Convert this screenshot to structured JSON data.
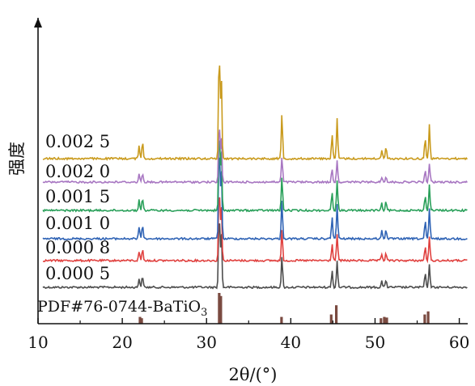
{
  "chart_data": {
    "type": "line",
    "title": "",
    "xlabel": "2θ/(°)",
    "ylabel": "强度",
    "xlim": [
      10,
      61
    ],
    "xticks": [
      10,
      20,
      30,
      40,
      50,
      60
    ],
    "grid": false,
    "legend": "none",
    "reference": {
      "label": "PDF#76-0744-BaTiO",
      "label_subscript": "3",
      "color": "#7a4a40",
      "peaks": [
        {
          "x": 22.1,
          "h": 0.22
        },
        {
          "x": 22.3,
          "h": 0.18
        },
        {
          "x": 31.5,
          "h": 1.0
        },
        {
          "x": 31.7,
          "h": 0.9
        },
        {
          "x": 38.9,
          "h": 0.22
        },
        {
          "x": 44.8,
          "h": 0.3
        },
        {
          "x": 45.4,
          "h": 0.6
        },
        {
          "x": 50.7,
          "h": 0.18
        },
        {
          "x": 51.1,
          "h": 0.22
        },
        {
          "x": 51.4,
          "h": 0.2
        },
        {
          "x": 55.9,
          "h": 0.3
        },
        {
          "x": 56.3,
          "h": 0.4
        }
      ]
    },
    "series": [
      {
        "name": "0.000 5",
        "color": "#4d4d4d"
      },
      {
        "name": "0.000 8",
        "color": "#e0413f"
      },
      {
        "name": "0.001 0",
        "color": "#2f63b5"
      },
      {
        "name": "0.001 5",
        "color": "#2aa05a"
      },
      {
        "name": "0.002 0",
        "color": "#a877c2"
      },
      {
        "name": "0.002 5",
        "color": "#c99a1c"
      }
    ],
    "peaks": [
      {
        "x": 22.0,
        "h": 0.12
      },
      {
        "x": 22.4,
        "h": 0.15
      },
      {
        "x": 31.5,
        "h": 1.0
      },
      {
        "x": 31.75,
        "h": 0.75
      },
      {
        "x": 38.95,
        "h": 0.4
      },
      {
        "x": 44.9,
        "h": 0.22
      },
      {
        "x": 45.5,
        "h": 0.35
      },
      {
        "x": 50.8,
        "h": 0.08
      },
      {
        "x": 51.3,
        "h": 0.1
      },
      {
        "x": 55.95,
        "h": 0.18
      },
      {
        "x": 56.45,
        "h": 0.3
      }
    ]
  }
}
